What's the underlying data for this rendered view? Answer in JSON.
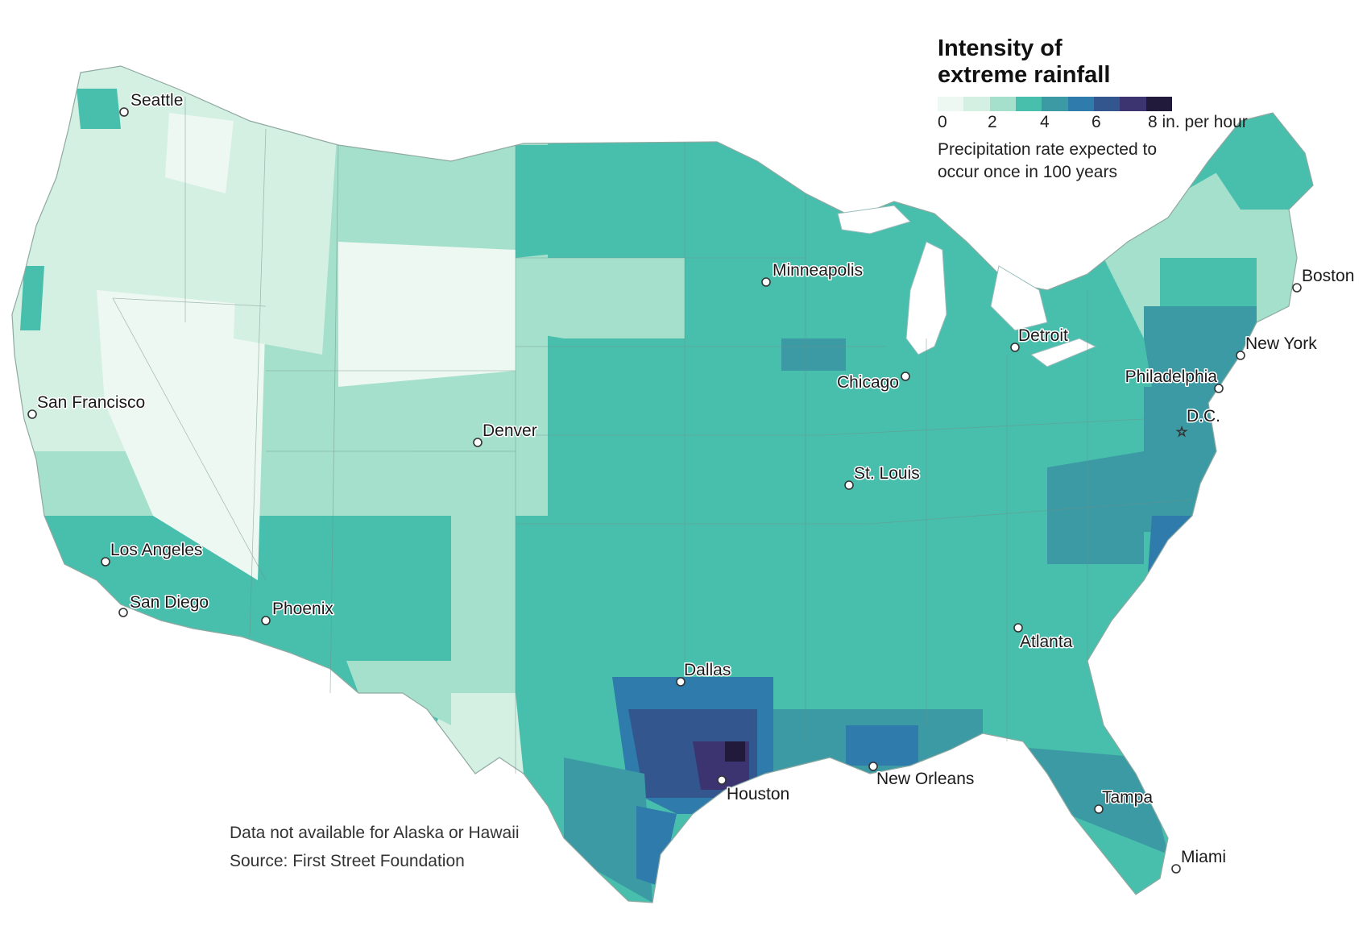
{
  "legend": {
    "title_line1": "Intensity of",
    "title_line2": "extreme rainfall",
    "ticks": [
      "0",
      "2",
      "4",
      "6",
      "8 in. per hour"
    ],
    "description_line1": "Precipitation rate expected to",
    "description_line2": "occur once in 100 years",
    "colors": [
      "#eef8f2",
      "#d4f0e2",
      "#a4e0cc",
      "#48bfac",
      "#3c9aa4",
      "#2f7bab",
      "#34568e",
      "#3c3470",
      "#211a3a"
    ]
  },
  "notes": {
    "availability": "Data not available for Alaska or Hawaii",
    "source": "Source: First Street Foundation"
  },
  "cities": [
    {
      "id": "seattle",
      "name": "Seattle"
    },
    {
      "id": "san-francisco",
      "name": "San Francisco"
    },
    {
      "id": "los-angeles",
      "name": "Los Angeles"
    },
    {
      "id": "san-diego",
      "name": "San Diego"
    },
    {
      "id": "phoenix",
      "name": "Phoenix"
    },
    {
      "id": "denver",
      "name": "Denver"
    },
    {
      "id": "minneapolis",
      "name": "Minneapolis"
    },
    {
      "id": "chicago",
      "name": "Chicago"
    },
    {
      "id": "st-louis",
      "name": "St. Louis"
    },
    {
      "id": "detroit",
      "name": "Detroit"
    },
    {
      "id": "dallas",
      "name": "Dallas"
    },
    {
      "id": "houston",
      "name": "Houston"
    },
    {
      "id": "new-orleans",
      "name": "New Orleans"
    },
    {
      "id": "atlanta",
      "name": "Atlanta"
    },
    {
      "id": "tampa",
      "name": "Tampa"
    },
    {
      "id": "miami",
      "name": "Miami"
    },
    {
      "id": "dc",
      "name": "D.C.",
      "marker": "star"
    },
    {
      "id": "philadelphia",
      "name": "Philadelphia"
    },
    {
      "id": "new-york",
      "name": "New York"
    },
    {
      "id": "boston",
      "name": "Boston"
    }
  ]
}
